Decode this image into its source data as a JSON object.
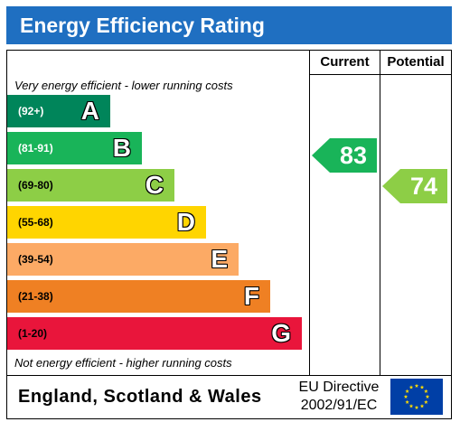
{
  "title": "Energy Efficiency Rating",
  "columns": {
    "current": "Current",
    "potential": "Potential"
  },
  "notes": {
    "top": "Very energy efficient - lower running costs",
    "bottom": "Not energy efficient - higher running costs"
  },
  "bands": [
    {
      "range": "(92+)",
      "letter": "A",
      "color": "#00855a",
      "range_color": "#ffffff"
    },
    {
      "range": "(81-91)",
      "letter": "B",
      "color": "#19b459",
      "range_color": "#ffffff"
    },
    {
      "range": "(69-80)",
      "letter": "C",
      "color": "#8dce46",
      "range_color": "#000000"
    },
    {
      "range": "(55-68)",
      "letter": "D",
      "color": "#ffd500",
      "range_color": "#000000"
    },
    {
      "range": "(39-54)",
      "letter": "E",
      "color": "#fcaa65",
      "range_color": "#000000"
    },
    {
      "range": "(21-38)",
      "letter": "F",
      "color": "#ef8023",
      "range_color": "#000000"
    },
    {
      "range": "(1-20)",
      "letter": "G",
      "color": "#e9153b",
      "range_color": "#000000"
    }
  ],
  "ratings": {
    "current": {
      "value": "83",
      "band": "B",
      "color": "#19b459"
    },
    "potential": {
      "value": "74",
      "band": "C",
      "color": "#8dce46"
    }
  },
  "footer": {
    "country": "England, Scotland & Wales",
    "directive_line1": "EU Directive",
    "directive_line2": "2002/91/EC",
    "flag_color": "#003fa6",
    "star_color": "#ffdd00"
  }
}
